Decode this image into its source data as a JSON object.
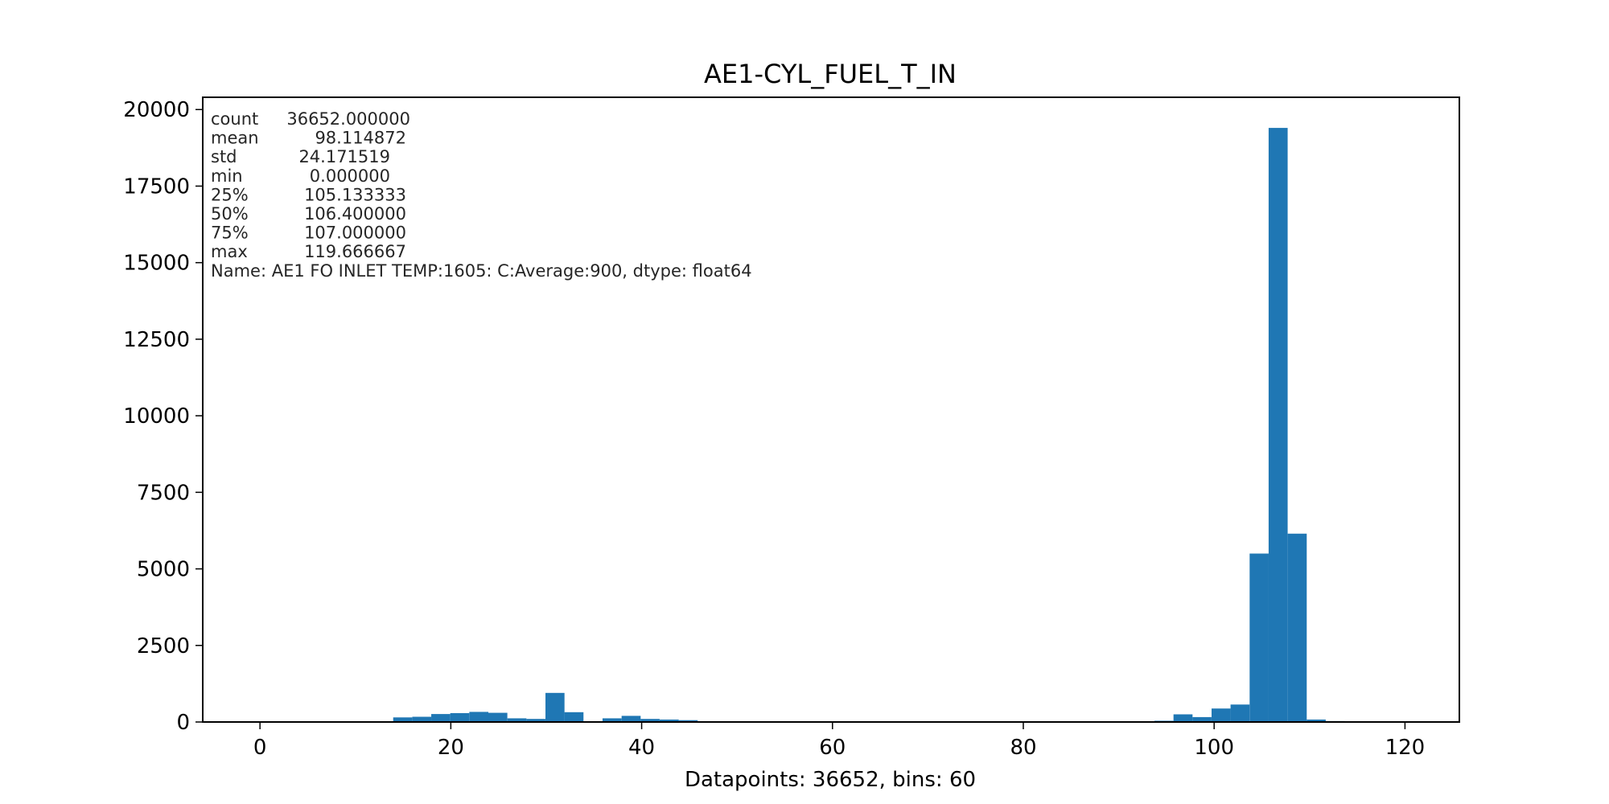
{
  "chart_data": {
    "type": "bar",
    "title": "AE1-CYL_FUEL_T_IN",
    "xlabel": "Datapoints: 36652, bins: 60",
    "ylabel": "",
    "xlim": [
      -6,
      125.7
    ],
    "ylim": [
      0,
      20400
    ],
    "xticks": [
      0,
      20,
      40,
      60,
      80,
      100,
      120
    ],
    "yticks": [
      0,
      2500,
      5000,
      7500,
      10000,
      12500,
      15000,
      17500,
      20000
    ],
    "bin_width": 1.994444,
    "color": "#1f77b4",
    "bins": [
      {
        "x0": 13.96,
        "value": 150
      },
      {
        "x0": 15.96,
        "value": 170
      },
      {
        "x0": 17.95,
        "value": 260
      },
      {
        "x0": 19.94,
        "value": 290
      },
      {
        "x0": 21.94,
        "value": 330
      },
      {
        "x0": 23.93,
        "value": 300
      },
      {
        "x0": 25.93,
        "value": 120
      },
      {
        "x0": 27.92,
        "value": 100
      },
      {
        "x0": 29.92,
        "value": 950
      },
      {
        "x0": 31.91,
        "value": 320
      },
      {
        "x0": 33.91,
        "value": 20
      },
      {
        "x0": 35.9,
        "value": 120
      },
      {
        "x0": 37.9,
        "value": 200
      },
      {
        "x0": 39.89,
        "value": 100
      },
      {
        "x0": 41.89,
        "value": 80
      },
      {
        "x0": 43.88,
        "value": 60
      },
      {
        "x0": 93.74,
        "value": 40
      },
      {
        "x0": 95.74,
        "value": 250
      },
      {
        "x0": 97.73,
        "value": 160
      },
      {
        "x0": 99.73,
        "value": 440
      },
      {
        "x0": 101.72,
        "value": 570
      },
      {
        "x0": 103.72,
        "value": 5500
      },
      {
        "x0": 105.71,
        "value": 19400
      },
      {
        "x0": 107.71,
        "value": 6150
      },
      {
        "x0": 109.7,
        "value": 80
      },
      {
        "x0": 111.69,
        "value": 30
      }
    ],
    "stats": [
      {
        "name": "count",
        "value": "36652.000000"
      },
      {
        "name": "mean",
        "value": "98.114872"
      },
      {
        "name": "std",
        "value": "24.171519"
      },
      {
        "name": "min",
        "value": "0.000000"
      },
      {
        "name": "25%",
        "value": "105.133333"
      },
      {
        "name": "50%",
        "value": "106.400000"
      },
      {
        "name": "75%",
        "value": "107.000000"
      },
      {
        "name": "max",
        "value": "119.666667"
      }
    ],
    "stats_footer": "Name: AE1 FO INLET TEMP:1605:  C:Average:900, dtype: float64"
  }
}
